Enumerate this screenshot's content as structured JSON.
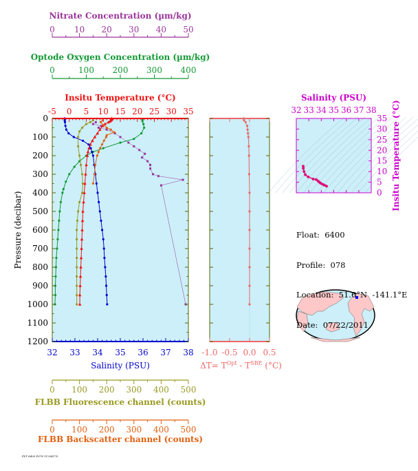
{
  "colors": {
    "plot_bg": "#cceff9",
    "nitrate": "#993399",
    "oxygen": "#119933",
    "temperature": "#ee1111",
    "salinity": "#0000cc",
    "fluorescence": "#999922",
    "backscatter": "#e06010",
    "delta_t": "#ee6666",
    "ts_axis": "#cc00cc",
    "land": "#ffc8c8"
  },
  "float_info": {
    "float": "Float:  6400",
    "profile": "Profile:  078",
    "location": "Location:  51.6°N  -141.1°E",
    "date": "Date:  07/22/2011"
  },
  "footnote": "FLT 6400 P078 11204170",
  "chart_data": [
    {
      "type": "scatter",
      "id": "main-profile",
      "ylabel": "Pressure (decibar)",
      "ylim": [
        0,
        1200
      ],
      "yticks": [
        "0",
        "100",
        "200",
        "300",
        "400",
        "500",
        "600",
        "700",
        "800",
        "900",
        "1000",
        "1100",
        "1200"
      ],
      "axes": {
        "nitrate": {
          "title": "Nitrate Concentration (µm/kg)",
          "range": [
            0,
            50
          ],
          "ticks": [
            "0",
            "10",
            "20",
            "30",
            "40",
            "50"
          ]
        },
        "oxygen": {
          "title": "Optode Oxygen Concentration (µm/kg)",
          "range": [
            0,
            400
          ],
          "ticks": [
            "0",
            "100",
            "200",
            "300",
            "400"
          ]
        },
        "temperature": {
          "title": "Insitu Temperature (°C)",
          "range": [
            -5,
            35
          ],
          "ticks": [
            "-5",
            "0",
            "5",
            "10",
            "15",
            "20",
            "25",
            "30",
            "35"
          ]
        },
        "salinity": {
          "title": "Salinity (PSU)",
          "range": [
            32,
            38
          ],
          "ticks": [
            "32",
            "33",
            "34",
            "35",
            "36",
            "37",
            "38"
          ]
        },
        "fluorescence": {
          "title": "FLBB Fluorescence channel (counts)",
          "range": [
            0,
            500
          ],
          "ticks": [
            "0",
            "100",
            "200",
            "300",
            "400",
            "500"
          ]
        },
        "backscatter": {
          "title": "FLBB Backscatter channel (counts)",
          "range": [
            0,
            500
          ],
          "ticks": [
            "0",
            "100",
            "200",
            "300",
            "400",
            "500"
          ]
        }
      },
      "series": [
        {
          "key": "nitrate",
          "name": "Nitrate Concentration (µm/kg)",
          "points": [
            [
              16,
              20
            ],
            [
              15,
              30
            ],
            [
              18,
              40
            ],
            [
              17,
              50
            ],
            [
              20,
              60
            ],
            [
              23,
              80
            ],
            [
              25,
              100
            ],
            [
              28,
              130
            ],
            [
              30,
              150
            ],
            [
              32,
              170
            ],
            [
              34,
              190
            ],
            [
              33,
              210
            ],
            [
              35,
              230
            ],
            [
              36,
              250
            ],
            [
              36,
              270
            ],
            [
              37,
              300
            ],
            [
              39,
              310
            ],
            [
              48,
              330
            ],
            [
              40,
              360
            ],
            [
              49,
              1000
            ]
          ]
        },
        {
          "key": "oxygen",
          "name": "Optode Oxygen Concentration (µm/kg)",
          "points": [
            [
              265,
              5
            ],
            [
              265,
              15
            ],
            [
              268,
              30
            ],
            [
              270,
              50
            ],
            [
              262,
              80
            ],
            [
              240,
              110
            ],
            [
              200,
              130
            ],
            [
              150,
              160
            ],
            [
              120,
              180
            ],
            [
              100,
              200
            ],
            [
              80,
              230
            ],
            [
              65,
              260
            ],
            [
              50,
              300
            ],
            [
              40,
              340
            ],
            [
              33,
              380
            ],
            [
              30,
              400
            ],
            [
              25,
              450
            ],
            [
              22,
              500
            ],
            [
              20,
              550
            ],
            [
              18,
              600
            ],
            [
              16,
              650
            ],
            [
              14,
              700
            ],
            [
              12,
              750
            ],
            [
              11,
              800
            ],
            [
              10,
              850
            ],
            [
              9,
              900
            ],
            [
              9,
              950
            ],
            [
              8,
              1000
            ]
          ]
        },
        {
          "key": "temperature",
          "name": "Insitu Temperature (°C)",
          "points": [
            [
              12.5,
              0
            ],
            [
              12.5,
              5
            ],
            [
              12.3,
              10
            ],
            [
              12.0,
              15
            ],
            [
              11.5,
              20
            ],
            [
              10.5,
              30
            ],
            [
              9.8,
              40
            ],
            [
              9.0,
              60
            ],
            [
              8.3,
              80
            ],
            [
              7.5,
              100
            ],
            [
              6.8,
              120
            ],
            [
              6.2,
              140
            ],
            [
              5.8,
              160
            ],
            [
              5.5,
              180
            ],
            [
              5.3,
              200
            ],
            [
              5.0,
              250
            ],
            [
              4.8,
              300
            ],
            [
              4.6,
              350
            ],
            [
              4.4,
              400
            ],
            [
              4.2,
              450
            ],
            [
              4.0,
              500
            ],
            [
              3.9,
              550
            ],
            [
              3.8,
              600
            ],
            [
              3.7,
              650
            ],
            [
              3.6,
              700
            ],
            [
              3.5,
              750
            ],
            [
              3.4,
              800
            ],
            [
              3.3,
              850
            ],
            [
              3.2,
              900
            ],
            [
              3.1,
              950
            ],
            [
              3.1,
              1000
            ]
          ]
        },
        {
          "key": "salinity",
          "name": "Salinity (PSU)",
          "points": [
            [
              32.55,
              0
            ],
            [
              32.55,
              10
            ],
            [
              32.56,
              20
            ],
            [
              32.58,
              40
            ],
            [
              32.62,
              60
            ],
            [
              32.72,
              80
            ],
            [
              32.95,
              100
            ],
            [
              33.35,
              120
            ],
            [
              33.6,
              140
            ],
            [
              33.7,
              160
            ],
            [
              33.75,
              180
            ],
            [
              33.8,
              200
            ],
            [
              33.85,
              250
            ],
            [
              33.9,
              300
            ],
            [
              33.95,
              350
            ],
            [
              34.0,
              400
            ],
            [
              34.05,
              450
            ],
            [
              34.1,
              500
            ],
            [
              34.15,
              550
            ],
            [
              34.2,
              600
            ],
            [
              34.25,
              650
            ],
            [
              34.28,
              700
            ],
            [
              34.3,
              750
            ],
            [
              34.33,
              800
            ],
            [
              34.36,
              850
            ],
            [
              34.38,
              900
            ],
            [
              34.4,
              950
            ],
            [
              34.42,
              1000
            ]
          ]
        },
        {
          "key": "fluorescence",
          "name": "FLBB Fluorescence channel (counts)",
          "points": [
            [
              150,
              10
            ],
            [
              140,
              20
            ],
            [
              125,
              30
            ],
            [
              110,
              50
            ],
            [
              100,
              70
            ],
            [
              95,
              100
            ],
            [
              95,
              150
            ],
            [
              100,
              200
            ],
            [
              105,
              250
            ],
            [
              110,
              300
            ],
            [
              112,
              350
            ],
            [
              110,
              400
            ],
            [
              100,
              450
            ],
            [
              95,
              500
            ],
            [
              92,
              550
            ],
            [
              90,
              600
            ],
            [
              90,
              650
            ],
            [
              90,
              700
            ],
            [
              90,
              750
            ],
            [
              90,
              800
            ],
            [
              90,
              850
            ],
            [
              90,
              900
            ],
            [
              90,
              950
            ],
            [
              90,
              1000
            ]
          ]
        },
        {
          "key": "backscatter",
          "name": "FLBB Backscatter channel (counts)",
          "points": [
            [
              185,
              10
            ],
            [
              178,
              20
            ],
            [
              188,
              35
            ],
            [
              200,
              50
            ],
            [
              215,
              60
            ],
            [
              228,
              75
            ],
            [
              200,
              90
            ],
            [
              198,
              100
            ],
            [
              190,
              120
            ],
            [
              183,
              140
            ],
            [
              176,
              160
            ],
            [
              170,
              180
            ],
            [
              165,
              200
            ],
            [
              158,
              250
            ],
            [
              155,
              300
            ],
            [
              150,
              350
            ]
          ]
        }
      ]
    },
    {
      "type": "line",
      "id": "delta-t",
      "xlabel": "ΔT= TOpt - TSBE (°C)",
      "xlabel_parts": {
        "lead": "ΔT= T",
        "sup1": "Opt",
        "mid": " - T",
        "sup2": "SBE",
        "tail": " (°C)"
      },
      "xlim": [
        -1.0,
        0.5
      ],
      "xticks": [
        "-1.0",
        "-0.5",
        "0.0",
        "0.5"
      ],
      "ylim": [
        0,
        1200
      ],
      "points": [
        [
          -0.15,
          0
        ],
        [
          -0.14,
          10
        ],
        [
          -0.1,
          20
        ],
        [
          -0.06,
          40
        ],
        [
          -0.05,
          60
        ],
        [
          -0.04,
          80
        ],
        [
          -0.03,
          100
        ],
        [
          -0.02,
          150
        ],
        [
          -0.015,
          200
        ],
        [
          -0.01,
          300
        ],
        [
          0.0,
          400
        ],
        [
          0.0,
          500
        ],
        [
          0.0,
          600
        ],
        [
          0.0,
          700
        ],
        [
          0.0,
          800
        ],
        [
          0.0,
          900
        ],
        [
          0.0,
          1000
        ]
      ]
    },
    {
      "type": "scatter",
      "id": "ts-diagram",
      "title": "Salinity (PSU)",
      "ylabel": "Insitu Temperature (°C)",
      "xlim": [
        32,
        38
      ],
      "ylim": [
        0,
        35
      ],
      "xticks": [
        "32",
        "33",
        "34",
        "35",
        "36",
        "37",
        "38"
      ],
      "yticks": [
        "0",
        "5",
        "10",
        "15",
        "20",
        "25",
        "30",
        "35"
      ],
      "points": [
        [
          32.55,
          12.5
        ],
        [
          32.56,
          11.5
        ],
        [
          32.62,
          10.0
        ],
        [
          32.72,
          8.5
        ],
        [
          32.95,
          7.5
        ],
        [
          33.35,
          6.5
        ],
        [
          33.6,
          6.2
        ],
        [
          33.75,
          5.5
        ],
        [
          33.85,
          5.0
        ],
        [
          33.95,
          4.5
        ],
        [
          34.1,
          4.0
        ],
        [
          34.25,
          3.6
        ],
        [
          34.42,
          3.1
        ]
      ]
    }
  ]
}
